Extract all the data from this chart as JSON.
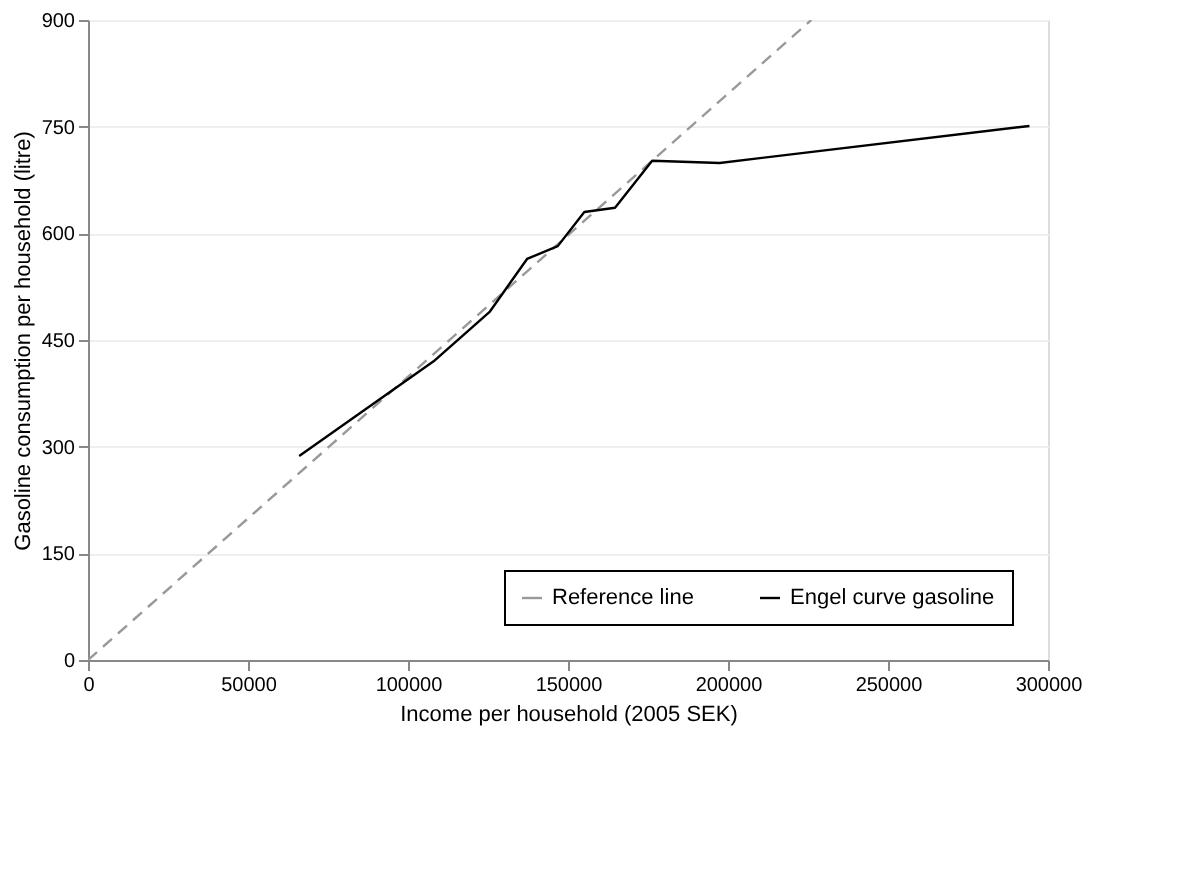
{
  "chart_data": {
    "type": "line",
    "xlabel": "Income per household (2005 SEK)",
    "ylabel": "Gasoline consumption per household (litre)",
    "series": [
      {
        "name": "Reference line",
        "color": "#999999",
        "line_style": "dashed",
        "x": [
          0,
          226000
        ],
        "values": [
          0,
          900
        ]
      },
      {
        "name": "Engel curve gasoline",
        "color": "#000000",
        "line_style": "solid",
        "x": [
          66000,
          108000,
          125600,
          137200,
          146800,
          155100,
          164700,
          176300,
          197400,
          294200
        ],
        "values": [
          287,
          420,
          490,
          564,
          582,
          630,
          636,
          702,
          699,
          751
        ]
      }
    ],
    "xlim": [
      0,
      300000
    ],
    "xticks": [
      0,
      50000,
      100000,
      150000,
      200000,
      250000,
      300000
    ],
    "ylim": [
      0,
      900
    ],
    "yticks": [
      0,
      150,
      300,
      450,
      600,
      750,
      900
    ],
    "grid": "y",
    "legend": "bottom right",
    "marker": "none"
  }
}
